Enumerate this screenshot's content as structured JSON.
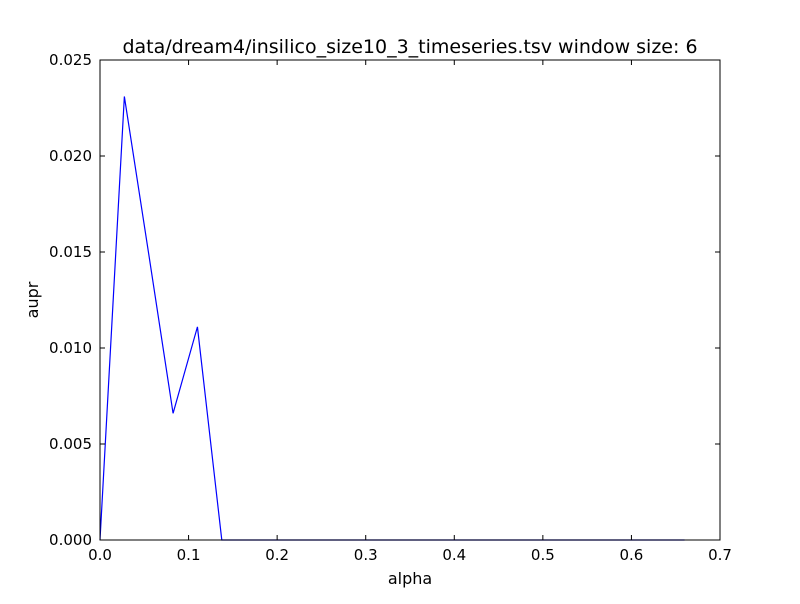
{
  "chart_data": {
    "type": "line",
    "title": "data/dream4/insilico_size10_3_timeseries.tsv window size: 6",
    "xlabel": "alpha",
    "ylabel": "aupr",
    "xlim": [
      0.0,
      0.7
    ],
    "ylim": [
      0.0,
      0.025
    ],
    "xticks": [
      "0.0",
      "0.1",
      "0.2",
      "0.3",
      "0.4",
      "0.5",
      "0.6",
      "0.7"
    ],
    "yticks": [
      "0.000",
      "0.005",
      "0.010",
      "0.015",
      "0.020",
      "0.025"
    ],
    "grid": false,
    "legend": "none",
    "series": [
      {
        "color": "#0000ff",
        "x": [
          0.0,
          0.0275,
          0.055,
          0.0825,
          0.11,
          0.1375,
          0.165,
          0.1925,
          0.22,
          0.2475,
          0.275,
          0.3025,
          0.33,
          0.3575,
          0.385,
          0.4125,
          0.44,
          0.4675,
          0.495,
          0.5225,
          0.55,
          0.5775,
          0.605,
          0.6325,
          0.66
        ],
        "values": [
          0.0,
          0.0231,
          0.0149,
          0.0066,
          0.0111,
          0.0,
          0.0,
          0.0,
          0.0,
          0.0,
          0.0,
          0.0,
          0.0,
          0.0,
          0.0,
          0.0,
          0.0,
          0.0,
          0.0,
          0.0,
          0.0,
          0.0,
          0.0,
          0.0,
          0.0
        ]
      }
    ]
  }
}
